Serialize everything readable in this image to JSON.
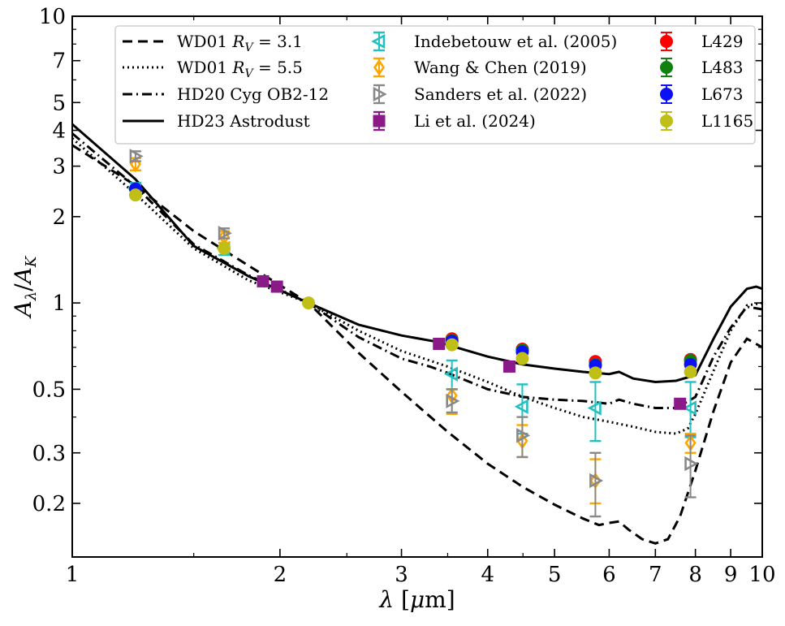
{
  "chart_data": {
    "type": "line",
    "xscale": "log",
    "yscale": "log",
    "xlim": [
      1,
      10
    ],
    "ylim": [
      0.13,
      10
    ],
    "xlabel": "λ [μm]",
    "ylabel": "Aλ/AK",
    "x_tick_labels": [
      {
        "value": 1,
        "label": "1"
      },
      {
        "value": 2,
        "label": "2"
      },
      {
        "value": 3,
        "label": "3"
      },
      {
        "value": 4,
        "label": "4"
      },
      {
        "value": 5,
        "label": "5"
      },
      {
        "value": 6,
        "label": "6"
      },
      {
        "value": 7,
        "label": "7"
      },
      {
        "value": 8,
        "label": "8"
      },
      {
        "value": 9,
        "label": "9"
      },
      {
        "value": 10,
        "label": "10"
      }
    ],
    "y_tick_labels": [
      {
        "value": 0.2,
        "label": "0.2"
      },
      {
        "value": 0.3,
        "label": "0.3"
      },
      {
        "value": 0.5,
        "label": "0.5"
      },
      {
        "value": 1,
        "label": "1"
      },
      {
        "value": 2,
        "label": "2"
      },
      {
        "value": 3,
        "label": "3"
      },
      {
        "value": 4,
        "label": "4"
      },
      {
        "value": 5,
        "label": "5"
      },
      {
        "value": 7,
        "label": "7"
      },
      {
        "value": 10,
        "label": "10"
      }
    ],
    "legend_position": "top",
    "lines": [
      {
        "name": "WD01 R_V = 3.1",
        "legend_label": "WD01 R",
        "legend_sub": "V",
        "legend_suffix": " = 3.1",
        "dash": "12,7",
        "color": "#000000",
        "x": [
          1.0,
          1.235,
          1.5,
          1.8,
          2.2,
          2.6,
          3.0,
          3.5,
          4.0,
          4.5,
          5.0,
          5.5,
          5.8,
          6.0,
          6.2,
          6.4,
          6.7,
          7.0,
          7.3,
          7.6,
          8.0,
          8.5,
          9.0,
          9.5,
          10.0
        ],
        "y": [
          3.55,
          2.57,
          1.78,
          1.35,
          1.0,
          0.67,
          0.49,
          0.355,
          0.275,
          0.228,
          0.198,
          0.177,
          0.168,
          0.171,
          0.173,
          0.162,
          0.15,
          0.145,
          0.15,
          0.18,
          0.26,
          0.42,
          0.62,
          0.75,
          0.7
        ]
      },
      {
        "name": "WD01 R_V = 5.5",
        "legend_label": "WD01 R",
        "legend_sub": "V",
        "legend_suffix": " = 5.5",
        "dash": "2,4",
        "color": "#000000",
        "x": [
          1.0,
          1.235,
          1.5,
          1.8,
          2.2,
          2.6,
          3.0,
          3.5,
          4.0,
          4.5,
          5.0,
          5.5,
          6.0,
          6.5,
          7.0,
          7.5,
          7.8,
          8.0,
          8.5,
          9.0,
          9.5,
          10.0
        ],
        "y": [
          3.75,
          2.4,
          1.55,
          1.2,
          1.0,
          0.8,
          0.68,
          0.6,
          0.53,
          0.47,
          0.43,
          0.4,
          0.385,
          0.37,
          0.355,
          0.35,
          0.365,
          0.41,
          0.58,
          0.8,
          0.98,
          1.0
        ]
      },
      {
        "name": "HD20 Cyg OB2-12",
        "legend_label": "HD20 Cyg OB2-12",
        "dash": "12,5,2,5",
        "color": "#000000",
        "x": [
          1.0,
          1.235,
          1.5,
          1.8,
          2.2,
          2.6,
          3.0,
          3.3,
          3.5,
          4.0,
          4.5,
          5.0,
          5.5,
          6.0,
          6.2,
          6.5,
          7.0,
          7.5,
          8.0,
          8.5,
          9.0,
          9.5,
          10.0
        ],
        "y": [
          3.9,
          2.55,
          1.6,
          1.25,
          1.0,
          0.76,
          0.64,
          0.6,
          0.57,
          0.5,
          0.47,
          0.46,
          0.455,
          0.445,
          0.46,
          0.445,
          0.43,
          0.43,
          0.47,
          0.65,
          0.82,
          0.97,
          0.95
        ]
      },
      {
        "name": "HD23 Astrodust",
        "legend_label": "HD23 Astrodust",
        "dash": "",
        "color": "#000000",
        "x": [
          1.0,
          1.235,
          1.5,
          1.8,
          2.2,
          2.6,
          3.0,
          3.4,
          3.6,
          4.0,
          4.5,
          5.0,
          5.5,
          6.0,
          6.2,
          6.5,
          7.0,
          7.5,
          8.0,
          8.5,
          9.0,
          9.5,
          9.8,
          10.0
        ],
        "y": [
          4.2,
          2.7,
          1.58,
          1.24,
          1.0,
          0.84,
          0.77,
          0.73,
          0.7,
          0.65,
          0.61,
          0.59,
          0.575,
          0.565,
          0.575,
          0.545,
          0.53,
          0.535,
          0.56,
          0.75,
          0.97,
          1.12,
          1.14,
          1.12
        ]
      }
    ],
    "literature": [
      {
        "name": "Indebetouw et al. (2005)",
        "marker": "triangle-left",
        "color": "#22c0c0",
        "filled": false,
        "points": [
          {
            "x": 1.235,
            "y": 2.5,
            "lo": 2.38,
            "hi": 2.62
          },
          {
            "x": 1.66,
            "y": 1.55,
            "lo": 1.47,
            "hi": 1.62
          },
          {
            "x": 3.55,
            "y": 0.565,
            "lo": 0.5,
            "hi": 0.63
          },
          {
            "x": 4.49,
            "y": 0.435,
            "lo": 0.35,
            "hi": 0.52
          },
          {
            "x": 5.73,
            "y": 0.43,
            "lo": 0.33,
            "hi": 0.53
          },
          {
            "x": 7.87,
            "y": 0.43,
            "lo": 0.34,
            "hi": 0.53
          }
        ]
      },
      {
        "name": "Wang & Chen (2019)",
        "marker": "diamond",
        "color": "#ffa500",
        "filled": false,
        "points": [
          {
            "x": 1.235,
            "y": 3.05,
            "lo": 2.9,
            "hi": 3.2
          },
          {
            "x": 1.66,
            "y": 1.7,
            "lo": 1.62,
            "hi": 1.78
          },
          {
            "x": 3.55,
            "y": 0.475,
            "lo": 0.41,
            "hi": 0.5
          },
          {
            "x": 4.49,
            "y": 0.33,
            "lo": 0.29,
            "hi": 0.375
          },
          {
            "x": 5.73,
            "y": 0.24,
            "lo": 0.2,
            "hi": 0.285
          },
          {
            "x": 7.87,
            "y": 0.325,
            "lo": 0.3,
            "hi": 0.35
          }
        ]
      },
      {
        "name": "Sanders et al. (2022)",
        "marker": "triangle-right",
        "color": "#888888",
        "filled": false,
        "points": [
          {
            "x": 1.235,
            "y": 3.25,
            "lo": 3.12,
            "hi": 3.38
          },
          {
            "x": 1.66,
            "y": 1.75,
            "lo": 1.68,
            "hi": 1.82
          },
          {
            "x": 3.55,
            "y": 0.455,
            "lo": 0.415,
            "hi": 0.5
          },
          {
            "x": 4.49,
            "y": 0.345,
            "lo": 0.29,
            "hi": 0.4
          },
          {
            "x": 5.73,
            "y": 0.24,
            "lo": 0.18,
            "hi": 0.3
          },
          {
            "x": 7.87,
            "y": 0.275,
            "lo": 0.21,
            "hi": 0.345
          }
        ]
      },
      {
        "name": "Li et al. (2024)",
        "marker": "square",
        "color": "#8b1a89",
        "filled": true,
        "points": [
          {
            "x": 1.89,
            "y": 1.19
          },
          {
            "x": 1.98,
            "y": 1.14
          },
          {
            "x": 3.4,
            "y": 0.72
          },
          {
            "x": 4.3,
            "y": 0.6
          },
          {
            "x": 7.6,
            "y": 0.445
          }
        ]
      }
    ],
    "clouds": [
      {
        "name": "L429",
        "color": "#ff0000",
        "points": [
          {
            "x": 3.55,
            "y": 0.75
          },
          {
            "x": 4.49,
            "y": 0.69
          },
          {
            "x": 5.73,
            "y": 0.625
          },
          {
            "x": 7.87,
            "y": 0.635
          }
        ]
      },
      {
        "name": "L483",
        "color": "#108010",
        "points": [
          {
            "x": 3.55,
            "y": 0.74
          },
          {
            "x": 4.49,
            "y": 0.685
          },
          {
            "x": 5.73,
            "y": 0.61
          },
          {
            "x": 7.87,
            "y": 0.63
          }
        ]
      },
      {
        "name": "L673",
        "color": "#0b10f5",
        "points": [
          {
            "x": 1.235,
            "y": 2.5
          },
          {
            "x": 3.55,
            "y": 0.735
          },
          {
            "x": 4.49,
            "y": 0.675
          },
          {
            "x": 5.73,
            "y": 0.605
          },
          {
            "x": 7.87,
            "y": 0.61
          }
        ]
      },
      {
        "name": "L1165",
        "color": "#bfbf18",
        "points": [
          {
            "x": 1.235,
            "y": 2.38
          },
          {
            "x": 1.66,
            "y": 1.55
          },
          {
            "x": 2.2,
            "y": 1.0
          },
          {
            "x": 3.55,
            "y": 0.715
          },
          {
            "x": 4.49,
            "y": 0.64
          },
          {
            "x": 5.73,
            "y": 0.57
          },
          {
            "x": 7.87,
            "y": 0.575
          }
        ]
      }
    ]
  }
}
